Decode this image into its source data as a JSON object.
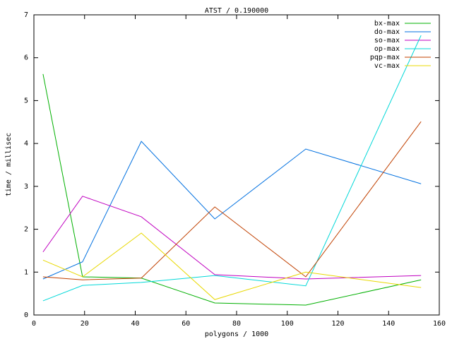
{
  "chart_data": {
    "type": "line",
    "title": "ATST / 0.190000",
    "x_label": "polygons / 1000",
    "y_label": "time / millisec",
    "x": [
      3.6,
      19.2,
      42.4,
      71.4,
      107.3,
      152.8
    ],
    "series": [
      {
        "name": "bx-max",
        "color": "#00b000",
        "values": [
          5.62,
          0.89,
          0.86,
          0.28,
          0.23,
          0.82
        ]
      },
      {
        "name": "do-max",
        "color": "#0070e0",
        "values": [
          0.84,
          1.24,
          4.05,
          2.24,
          3.87,
          3.06
        ]
      },
      {
        "name": "so-max",
        "color": "#c000c0",
        "values": [
          1.47,
          2.77,
          2.29,
          0.94,
          0.84,
          0.92
        ]
      },
      {
        "name": "op-max",
        "color": "#00d8d8",
        "values": [
          0.33,
          0.69,
          0.76,
          0.92,
          0.68,
          6.52
        ]
      },
      {
        "name": "pqp-max",
        "color": "#c04000",
        "values": [
          0.89,
          0.82,
          0.86,
          2.52,
          0.89,
          4.51
        ]
      },
      {
        "name": "vc-max",
        "color": "#e8d800",
        "values": [
          1.28,
          0.89,
          1.91,
          0.36,
          1.0,
          0.64
        ]
      }
    ],
    "xlim": [
      0,
      160
    ],
    "xticks": [
      0,
      20,
      40,
      60,
      80,
      100,
      120,
      140,
      160
    ],
    "ylim": [
      0,
      7
    ],
    "yticks": [
      0,
      1,
      2,
      3,
      4,
      5,
      6,
      7
    ],
    "legend": "top-right"
  }
}
